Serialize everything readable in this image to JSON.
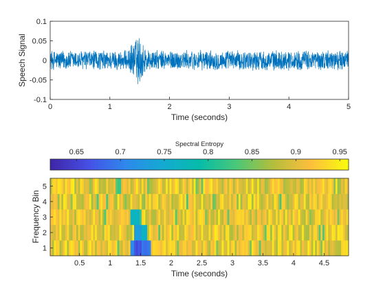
{
  "figure_bg": "#ffffff",
  "chart_data": [
    {
      "type": "line",
      "xlabel": "Time (seconds)",
      "ylabel": "Speech Signal",
      "xlim": [
        0,
        5
      ],
      "ylim": [
        -0.1,
        0.1
      ],
      "xticks": [
        "0",
        "1",
        "2",
        "3",
        "4",
        "5"
      ],
      "yticks": [
        "0.1",
        "0.05",
        "0",
        "-0.05",
        "-0.1"
      ],
      "series_color": "#0072bd",
      "noise_amplitude": 0.027,
      "burst": {
        "start": 1.3,
        "end": 1.68,
        "peak": 1.47,
        "min": -0.075,
        "max": 0.068
      }
    },
    {
      "type": "heatmap",
      "xlabel": "Time (seconds)",
      "ylabel": "Frequency Bin",
      "xlim": [
        0.02,
        4.9
      ],
      "xticks": [
        "0.5",
        "1",
        "1.5",
        "2",
        "2.5",
        "3",
        "3.5",
        "4",
        "4.5"
      ],
      "yticks": [
        "5",
        "4",
        "3",
        "2",
        "1"
      ],
      "bins": [
        1,
        2,
        3,
        4,
        5
      ],
      "colorbar": {
        "label": "Spectral Entropy",
        "range": [
          0.62,
          0.96
        ],
        "ticks": [
          "0.65",
          "0.7",
          "0.75",
          "0.8",
          "0.85",
          "0.9",
          "0.95"
        ],
        "colormap": "parula"
      },
      "typical_value_range": [
        0.87,
        0.95
      ],
      "low_entropy_regions": [
        {
          "bin": 3,
          "start": 1.32,
          "end": 1.42,
          "value": 0.77
        },
        {
          "bin": 3,
          "start": 1.42,
          "end": 1.48,
          "value": 0.76
        },
        {
          "bin": 2,
          "start": 1.38,
          "end": 1.5,
          "value": 0.73
        },
        {
          "bin": 2,
          "start": 1.5,
          "end": 1.62,
          "value": 0.76
        },
        {
          "bin": 1,
          "start": 1.32,
          "end": 1.4,
          "value": 0.7
        },
        {
          "bin": 1,
          "start": 1.4,
          "end": 1.52,
          "value": 0.66
        },
        {
          "bin": 1,
          "start": 1.52,
          "end": 1.66,
          "value": 0.69
        }
      ]
    }
  ]
}
